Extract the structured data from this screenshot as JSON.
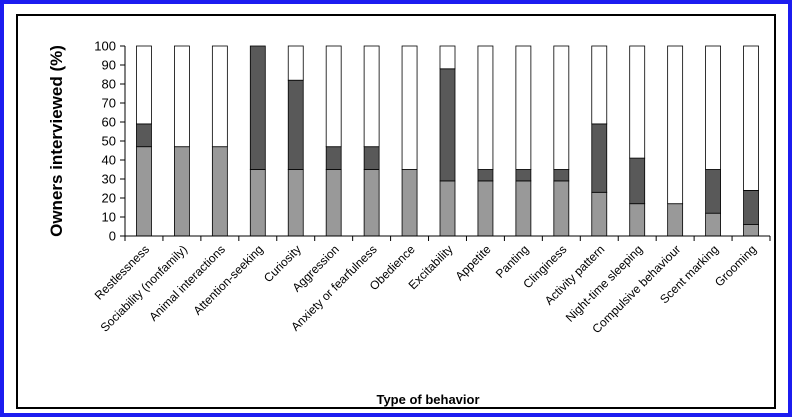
{
  "chart_data": {
    "type": "bar",
    "stacked": true,
    "title": "",
    "xlabel": "Type of behavior",
    "ylabel": "Owners interviewed (%)",
    "ylim": [
      0,
      100
    ],
    "yticks": [
      "0",
      "10",
      "20",
      "30",
      "40",
      "50",
      "60",
      "70",
      "80",
      "90",
      "100"
    ],
    "grid": false,
    "categories": [
      "Restlessness",
      "Sociability (nonfamily)",
      "Animal interactions",
      "Attention-seeking",
      "Curiosity",
      "Aggression",
      "Anxiety or fearfulness",
      "Obedience",
      "Excitability",
      "Appetite",
      "Panting",
      "Clinginess",
      "Activity pattern",
      "Night-time sleeping",
      "Compulsive behaviour",
      "Scent marking",
      "Grooming"
    ],
    "series": [
      {
        "color": "#999999",
        "values": [
          47,
          47,
          47,
          35,
          35,
          35,
          35,
          35,
          29,
          29,
          29,
          29,
          23,
          17,
          17,
          12,
          6
        ]
      },
      {
        "color": "#595959",
        "values": [
          12,
          0,
          0,
          65,
          47,
          12,
          12,
          0,
          59,
          6,
          6,
          6,
          36,
          24,
          0,
          23,
          18
        ]
      },
      {
        "color": "#ffffff",
        "values": [
          41,
          53,
          53,
          0,
          18,
          53,
          53,
          65,
          12,
          65,
          65,
          65,
          41,
          59,
          83,
          65,
          76
        ]
      }
    ]
  }
}
